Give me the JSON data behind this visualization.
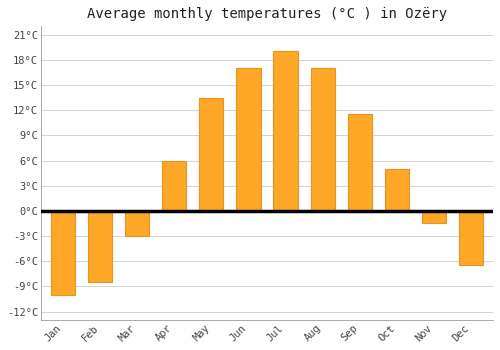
{
  "title": "Average monthly temperatures (°C ) in Ozëry",
  "months": [
    "Jan",
    "Feb",
    "Mar",
    "Apr",
    "May",
    "Jun",
    "Jul",
    "Aug",
    "Sep",
    "Oct",
    "Nov",
    "Dec"
  ],
  "values": [
    -10.0,
    -8.5,
    -3.0,
    6.0,
    13.5,
    17.0,
    19.0,
    17.0,
    11.5,
    5.0,
    -1.5,
    -6.5
  ],
  "bar_color": "#FFA726",
  "bar_edge_color": "#E69520",
  "background_color": "#FFFFFF",
  "grid_color": "#CCCCCC",
  "zero_line_color": "#000000",
  "yticks": [
    -12,
    -9,
    -6,
    -3,
    0,
    3,
    6,
    9,
    12,
    15,
    18,
    21
  ],
  "ylim": [
    -13,
    22
  ],
  "xlim": [
    -0.6,
    11.6
  ],
  "title_fontsize": 10,
  "tick_fontsize": 7.5,
  "bar_width": 0.65
}
